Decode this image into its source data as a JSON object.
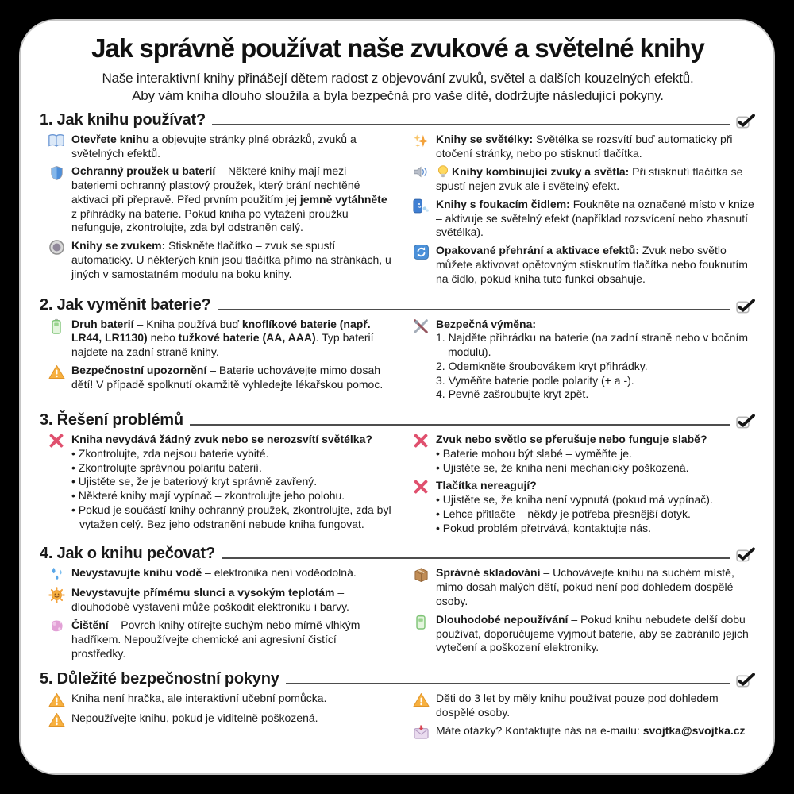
{
  "page": {
    "title": "Jak správně používat naše zvukové a světelné knihy",
    "intro": {
      "line1": "Naše interaktivní knihy přinášejí dětem radost z objevování zvuků, světel a dalších kouzelných efektů.",
      "line2": "Aby vám kniha dlouho sloužila a byla bezpečná pro vaše dítě, dodržujte následující pokyny."
    }
  },
  "colors": {
    "background": "#000000",
    "card": "#ffffff",
    "text": "#1a1a1a",
    "section_rule": "#4d4d4d",
    "x_mark_pink": "#e0506e",
    "warning_orange": "#f7b03f",
    "battery_green": "#7fc477",
    "accent_blue": "#4a90d9"
  },
  "sections": [
    {
      "heading": "1. Jak knihu používat?",
      "left": [
        {
          "icon": "open-book-icon",
          "segments": [
            {
              "b": true,
              "t": "Otevřete knihu"
            },
            {
              "b": false,
              "t": " a objevujte stránky plné obrázků, zvuků a světelných efektů."
            }
          ]
        },
        {
          "icon": "shield-icon",
          "segments": [
            {
              "b": true,
              "t": "Ochranný proužek u baterií"
            },
            {
              "b": false,
              "t": " – Některé knihy mají mezi bateriemi ochranný plastový proužek, který brání nechtěné aktivaci při přepravě. Před prvním použitím jej "
            },
            {
              "b": true,
              "t": "jemně vytáhněte"
            },
            {
              "b": false,
              "t": " z přihrádky na baterie. Pokud kniha po vytažení proužku nefunguje, zkontrolujte, zda byl odstraněn celý."
            }
          ]
        },
        {
          "icon": "sound-button-icon",
          "segments": [
            {
              "b": true,
              "t": "Knihy se zvukem:"
            },
            {
              "b": false,
              "t": " Stiskněte tlačítko – zvuk se spustí automaticky. U některých knih jsou tlačítka přímo na stránkách, u jiných v samostatném modulu na boku knihy."
            }
          ]
        }
      ],
      "right": [
        {
          "icon": "sparkles-icon",
          "segments": [
            {
              "b": true,
              "t": "Knihy se světélky:"
            },
            {
              "b": false,
              "t": " Světélka se rozsvítí buď automaticky při otočení stránky, nebo po stisknutí tlačítka."
            }
          ]
        },
        {
          "icon": "speaker-icon",
          "icon2": "bulb-icon",
          "segments": [
            {
              "b": true,
              "t": "Knihy kombinující zvuky a světla:"
            },
            {
              "b": false,
              "t": " Při stisknutí tlačítka se spustí nejen zvuk ale i světelný efekt."
            }
          ]
        },
        {
          "icon": "blow-sensor-icon",
          "segments": [
            {
              "b": true,
              "t": "Knihy s foukacím čidlem:"
            },
            {
              "b": false,
              "t": " Foukněte na označené místo v knize – aktivuje se světelný efekt (například rozsvícení nebo zhasnutí světélka)."
            }
          ]
        },
        {
          "icon": "repeat-icon",
          "segments": [
            {
              "b": true,
              "t": "Opakované přehrání a aktivace efektů:"
            },
            {
              "b": false,
              "t": " Zvuk nebo světlo můžete aktivovat opětovným stisknutím tlačítka nebo fouknutím na čidlo, pokud kniha tuto funkci obsahuje."
            }
          ]
        }
      ]
    },
    {
      "heading": "2. Jak vyměnit baterie?",
      "left": [
        {
          "icon": "battery-icon",
          "segments": [
            {
              "b": true,
              "t": "Druh baterií"
            },
            {
              "b": false,
              "t": " – Kniha používá buď "
            },
            {
              "b": true,
              "t": "knoflíkové baterie (např. LR44, LR1130)"
            },
            {
              "b": false,
              "t": " nebo "
            },
            {
              "b": true,
              "t": "tužkové baterie (AA, AAA)"
            },
            {
              "b": false,
              "t": ". Typ baterií najdete na zadní straně knihy."
            }
          ]
        },
        {
          "icon": "warning-icon",
          "segments": [
            {
              "b": true,
              "t": "Bezpečnostní upozornění"
            },
            {
              "b": false,
              "t": " – Baterie uchovávejte mimo dosah dětí! V případě spolknutí okamžitě vyhledejte lékařskou pomoc."
            }
          ]
        }
      ],
      "right": [
        {
          "icon": "tools-icon",
          "segments": [
            {
              "b": true,
              "t": "Bezpečná výměna:"
            }
          ],
          "steps": [
            "1. Najděte přihrádku na baterie (na zadní straně nebo v bočním modulu).",
            "2. Odemkněte šroubovákem kryt přihrádky.",
            "3. Vyměňte baterie podle polarity (+ a -).",
            "4. Pevně zašroubujte kryt zpět."
          ]
        }
      ]
    },
    {
      "heading": "3. Řešení problémů",
      "left": [
        {
          "icon": "x-mark-icon",
          "segments": [
            {
              "b": true,
              "t": "Kniha nevydává žádný zvuk nebo se nerozsvítí světélka?"
            }
          ],
          "bullets": [
            "• Zkontrolujte, zda nejsou baterie vybité.",
            "• Zkontrolujte správnou polaritu baterií.",
            "• Ujistěte se, že je bateriový kryt správně zavřený.",
            "• Některé knihy mají vypínač – zkontrolujte jeho polohu.",
            "• Pokud je součástí knihy ochranný proužek, zkontrolujte, zda byl vytažen celý. Bez jeho odstranění nebude kniha fungovat."
          ]
        }
      ],
      "right": [
        {
          "icon": "x-mark-icon",
          "segments": [
            {
              "b": true,
              "t": "Zvuk nebo světlo se přerušuje nebo funguje slabě?"
            }
          ],
          "bullets": [
            "• Baterie mohou být slabé – vyměňte je.",
            "• Ujistěte se, že kniha není mechanicky poškozená."
          ]
        },
        {
          "icon": "x-mark-icon",
          "segments": [
            {
              "b": true,
              "t": "Tlačítka nereagují?"
            }
          ],
          "bullets": [
            "• Ujistěte se, že kniha není vypnutá (pokud má vypínač).",
            "• Lehce přitlačte – někdy je potřeba přesnější dotyk.",
            "• Pokud problém přetrvává, kontaktujte nás."
          ]
        }
      ]
    },
    {
      "heading": "4. Jak o knihu pečovat?",
      "left": [
        {
          "icon": "water-drops-icon",
          "segments": [
            {
              "b": true,
              "t": "Nevystavujte knihu vodě"
            },
            {
              "b": false,
              "t": " – elektronika není voděodolná."
            }
          ]
        },
        {
          "icon": "sun-icon",
          "segments": [
            {
              "b": true,
              "t": "Nevystavujte přímému slunci a vysokým teplotám"
            },
            {
              "b": false,
              "t": " – dlouhodobé vystavení může poškodit elektroniku i barvy."
            }
          ]
        },
        {
          "icon": "sponge-icon",
          "segments": [
            {
              "b": true,
              "t": "Čištění"
            },
            {
              "b": false,
              "t": " – Povrch knihy otírejte suchým nebo mírně vlhkým hadříkem. Nepoužívejte chemické ani agresivní čistící prostředky."
            }
          ]
        }
      ],
      "right": [
        {
          "icon": "package-icon",
          "segments": [
            {
              "b": true,
              "t": "Správné skladování"
            },
            {
              "b": false,
              "t": " – Uchovávejte knihu na suchém místě, mimo dosah malých dětí, pokud není pod dohledem dospělé osoby."
            }
          ]
        },
        {
          "icon": "battery-icon",
          "segments": [
            {
              "b": true,
              "t": "Dlouhodobé nepoužívání"
            },
            {
              "b": false,
              "t": " – Pokud knihu nebudete delší dobu používat, doporučujeme vyjmout baterie, aby se zabránilo jejich vytečení a poškození elektroniky."
            }
          ]
        }
      ]
    },
    {
      "heading": "5. Důležité bezpečnostní pokyny",
      "left": [
        {
          "icon": "warning-icon",
          "segments": [
            {
              "b": false,
              "t": "Kniha není hračka, ale interaktivní učební pomůcka."
            }
          ]
        },
        {
          "icon": "warning-icon",
          "segments": [
            {
              "b": false,
              "t": "Nepoužívejte knihu, pokud je viditelně poškozená."
            }
          ]
        }
      ],
      "right": [
        {
          "icon": "warning-icon",
          "segments": [
            {
              "b": false,
              "t": "Děti do 3 let by měly knihu používat pouze pod dohledem dospělé osoby."
            }
          ]
        },
        {
          "icon": "mail-icon",
          "segments": [
            {
              "b": false,
              "t": "Máte otázky? Kontaktujte nás na e-mailu: "
            },
            {
              "b": true,
              "t": "svojtka@svojtka.cz"
            }
          ]
        }
      ]
    }
  ]
}
